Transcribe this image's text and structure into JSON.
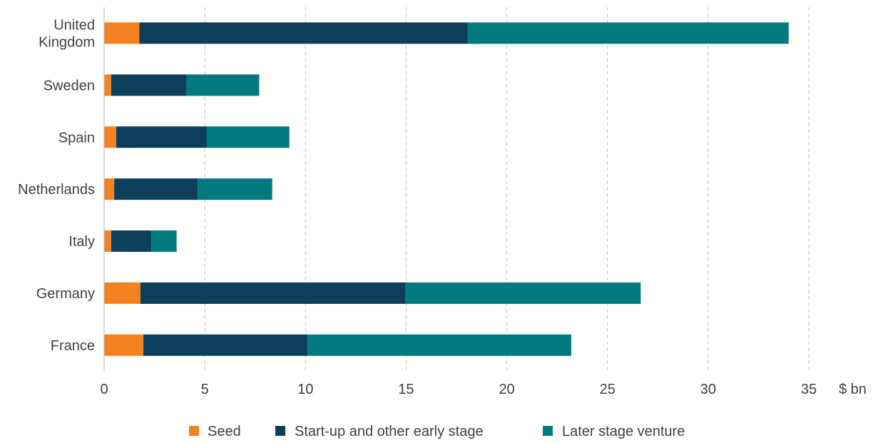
{
  "chart_data": {
    "type": "bar",
    "orientation": "horizontal",
    "stacked": true,
    "categories": [
      "United Kingdom",
      "Sweden",
      "Spain",
      "Netherlands",
      "Italy",
      "Germany",
      "France"
    ],
    "series": [
      {
        "name": "Seed",
        "color": "#F58220",
        "values": [
          1.75,
          0.35,
          0.6,
          0.5,
          0.35,
          1.8,
          1.95
        ]
      },
      {
        "name": "Start-up and other early stage",
        "color": "#0B3F5C",
        "values": [
          16.3,
          3.75,
          4.5,
          4.15,
          2.0,
          13.15,
          8.15
        ]
      },
      {
        "name": "Later stage venture",
        "color": "#00797F",
        "values": [
          15.95,
          3.6,
          4.1,
          3.7,
          1.25,
          11.7,
          13.1
        ]
      }
    ],
    "xlim": [
      0,
      35
    ],
    "xticks": [
      "0",
      "5",
      "10",
      "15",
      "20",
      "25",
      "30",
      "35"
    ],
    "unit_label": "$ bn",
    "grid": "vertical dashed",
    "legend_position": "bottom"
  }
}
